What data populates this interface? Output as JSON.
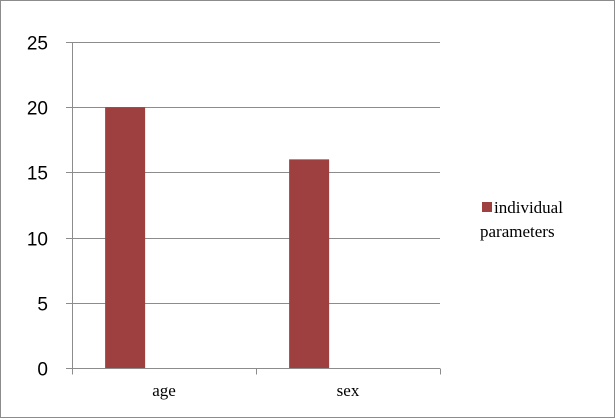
{
  "chart_data": {
    "type": "bar",
    "categories": [
      "age",
      "sex"
    ],
    "series": [
      {
        "name": "individual parameters",
        "values": [
          20,
          16
        ],
        "color": "#9e4040"
      }
    ],
    "ylim": [
      0,
      25
    ],
    "yticks": [
      0,
      5,
      10,
      15,
      20,
      25
    ],
    "grid": true,
    "legend": "right",
    "title": "",
    "xlabel": "",
    "ylabel": ""
  },
  "legend": {
    "lines": [
      "individual",
      "parameters"
    ]
  }
}
